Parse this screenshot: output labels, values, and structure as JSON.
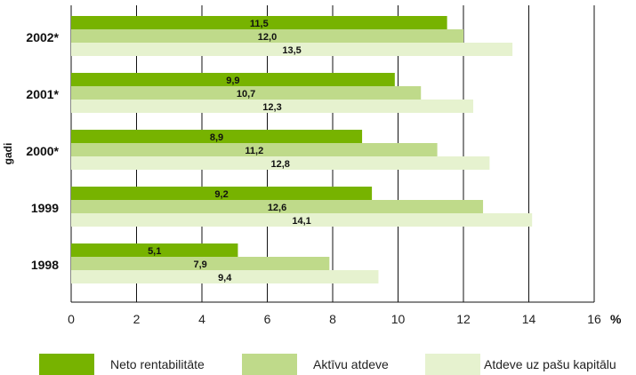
{
  "chart_data": {
    "type": "bar",
    "orientation": "horizontal",
    "ylabel": "gadi",
    "unit_label": "%",
    "xlim": [
      0,
      16
    ],
    "x_ticks": [
      "0",
      "2",
      "4",
      "6",
      "8",
      "10",
      "12",
      "14",
      "16"
    ],
    "grid": true,
    "legend_position": "bottom",
    "categories": [
      "2002*",
      "2001*",
      "2000*",
      "1999",
      "1998"
    ],
    "highlight_category_color": "#8db600",
    "series": [
      {
        "name": "Neto rentabilitāte",
        "color": "#77b300",
        "values": [
          11.5,
          9.9,
          8.9,
          9.2,
          5.1
        ],
        "labels": [
          "11,5",
          "9,9",
          "8,9",
          "9,2",
          "5,1"
        ]
      },
      {
        "name": "Aktīvu atdeve",
        "color": "#bfda8a",
        "values": [
          12.0,
          10.7,
          11.2,
          12.6,
          7.9
        ],
        "labels": [
          "12,0",
          "10,7",
          "11,2",
          "12,6",
          "7,9"
        ]
      },
      {
        "name": "Atdeve uz pašu kapitālu",
        "color": "#e6f2cf",
        "values": [
          13.5,
          12.3,
          12.8,
          14.1,
          9.4
        ],
        "labels": [
          "13,5",
          "12,3",
          "12,8",
          "14,1",
          "9,4"
        ]
      }
    ]
  }
}
